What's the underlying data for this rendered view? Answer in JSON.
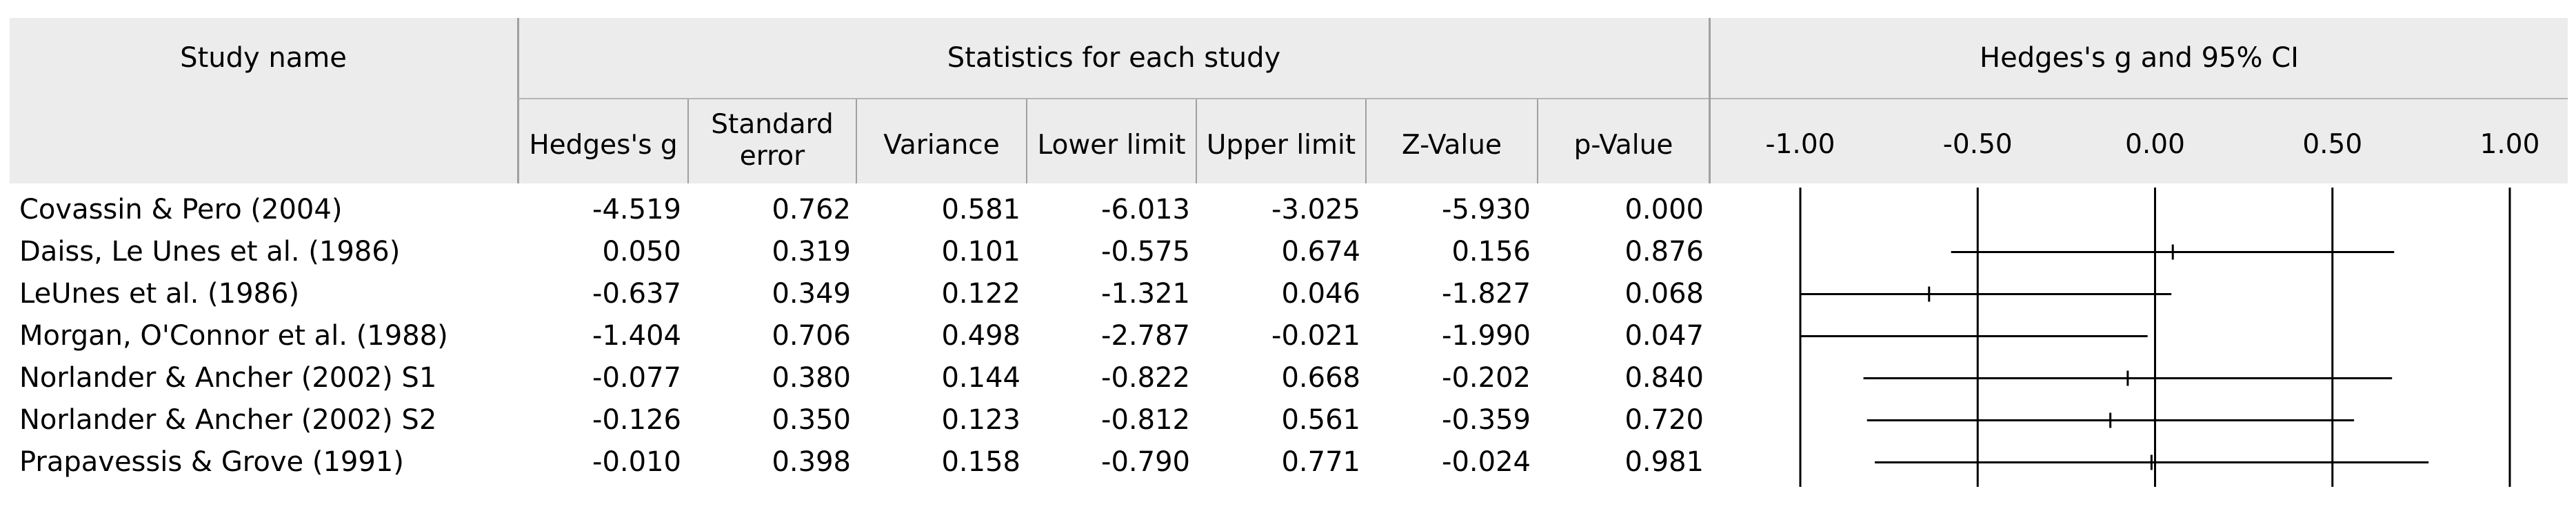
{
  "headers": {
    "study_name": "Study name",
    "stats_group": "Statistics for each study",
    "plot_group": "Hedges's g and 95% CI",
    "columns": {
      "hedges_g": "Hedges's g",
      "std_error_line1": "Standard",
      "std_error_line2": "error",
      "variance": "Variance",
      "lower_limit": "Lower limit",
      "upper_limit": "Upper limit",
      "z_value": "Z-Value",
      "p_value": "p-Value"
    },
    "axis_ticks": [
      "-1.00",
      "-0.50",
      "0.00",
      "0.50",
      "1.00"
    ]
  },
  "rows": [
    {
      "study": "Covassin & Pero (2004)",
      "g": "-4.519",
      "se": "0.762",
      "var": "0.581",
      "lower": "-6.013",
      "upper": "-3.025",
      "z": "-5.930",
      "p": "0.000"
    },
    {
      "study": "Daiss, Le Unes et al. (1986)",
      "g": "0.050",
      "se": "0.319",
      "var": "0.101",
      "lower": "-0.575",
      "upper": "0.674",
      "z": "0.156",
      "p": "0.876"
    },
    {
      "study": "LeUnes et al. (1986)",
      "g": "-0.637",
      "se": "0.349",
      "var": "0.122",
      "lower": "-1.321",
      "upper": "0.046",
      "z": "-1.827",
      "p": "0.068"
    },
    {
      "study": "Morgan, O'Connor et al. (1988)",
      "g": "-1.404",
      "se": "0.706",
      "var": "0.498",
      "lower": "-2.787",
      "upper": "-0.021",
      "z": "-1.990",
      "p": "0.047"
    },
    {
      "study": "Norlander & Ancher (2002) S1",
      "g": "-0.077",
      "se": "0.380",
      "var": "0.144",
      "lower": "-0.822",
      "upper": "0.668",
      "z": "-0.202",
      "p": "0.840"
    },
    {
      "study": "Norlander & Ancher (2002) S2",
      "g": "-0.126",
      "se": "0.350",
      "var": "0.123",
      "lower": "-0.812",
      "upper": "0.561",
      "z": "-0.359",
      "p": "0.720"
    },
    {
      "study": "Prapavessis & Grove (1991)",
      "g": "-0.010",
      "se": "0.398",
      "var": "0.158",
      "lower": "-0.790",
      "upper": "0.771",
      "z": "-0.024",
      "p": "0.981"
    }
  ],
  "chart_data": {
    "type": "forest",
    "axis_label": "Hedges's g and 95% CI",
    "xlim": [
      -1.0,
      1.0
    ],
    "x_ticks": [
      -1.0,
      -0.5,
      0.0,
      0.5,
      1.0
    ],
    "reference_lines": [
      -1.0,
      -0.5,
      0.0,
      0.5,
      1.0
    ],
    "studies": [
      {
        "name": "Covassin & Pero (2004)",
        "g": -4.519,
        "lower": -6.013,
        "upper": -3.025
      },
      {
        "name": "Daiss, Le Unes et al. (1986)",
        "g": 0.05,
        "lower": -0.575,
        "upper": 0.674
      },
      {
        "name": "LeUnes et al. (1986)",
        "g": -0.637,
        "lower": -1.321,
        "upper": 0.046
      },
      {
        "name": "Morgan, O'Connor et al. (1988)",
        "g": -1.404,
        "lower": -2.787,
        "upper": -0.021
      },
      {
        "name": "Norlander & Ancher (2002) S1",
        "g": -0.077,
        "lower": -0.822,
        "upper": 0.668
      },
      {
        "name": "Norlander & Ancher (2002) S2",
        "g": -0.126,
        "lower": -0.812,
        "upper": 0.561
      },
      {
        "name": "Prapavessis & Grove (1991)",
        "g": -0.01,
        "lower": -0.79,
        "upper": 0.771
      }
    ]
  }
}
